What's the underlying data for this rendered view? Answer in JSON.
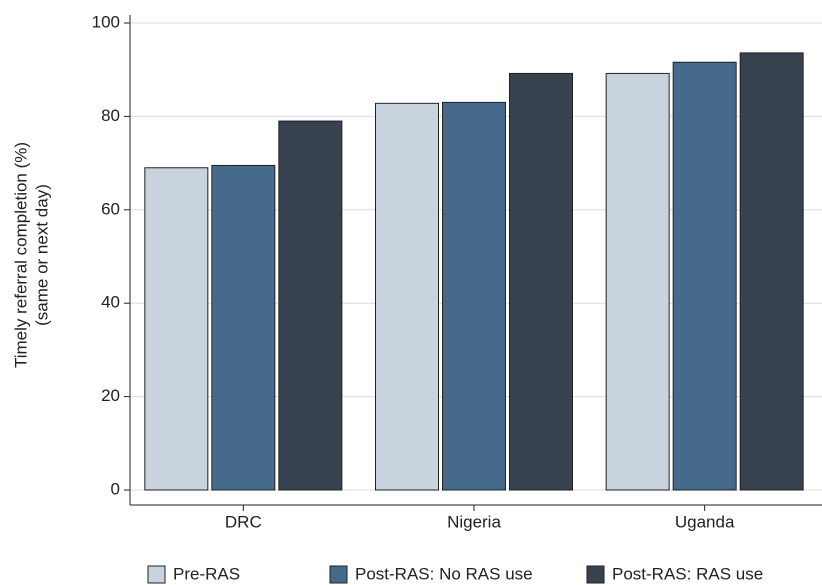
{
  "chart_data": {
    "type": "bar",
    "ylabel": [
      "Timely referral completion (%)",
      "(same or next day)"
    ],
    "categories": [
      "DRC",
      "Nigeria",
      "Uganda"
    ],
    "series": [
      {
        "name": "Pre-RAS",
        "color": "#c8d3de",
        "values": [
          69,
          82.8,
          89.2
        ]
      },
      {
        "name": "Post-RAS: No RAS use",
        "color": "#466a8c",
        "values": [
          69.5,
          83,
          91.6
        ]
      },
      {
        "name": "Post-RAS: RAS use",
        "color": "#37424f",
        "values": [
          79,
          89.2,
          93.6
        ]
      }
    ],
    "ylim": [
      0,
      100
    ],
    "yticks": [
      0,
      20,
      40,
      60,
      80,
      100
    ],
    "grid": true,
    "legend": "bottom"
  }
}
